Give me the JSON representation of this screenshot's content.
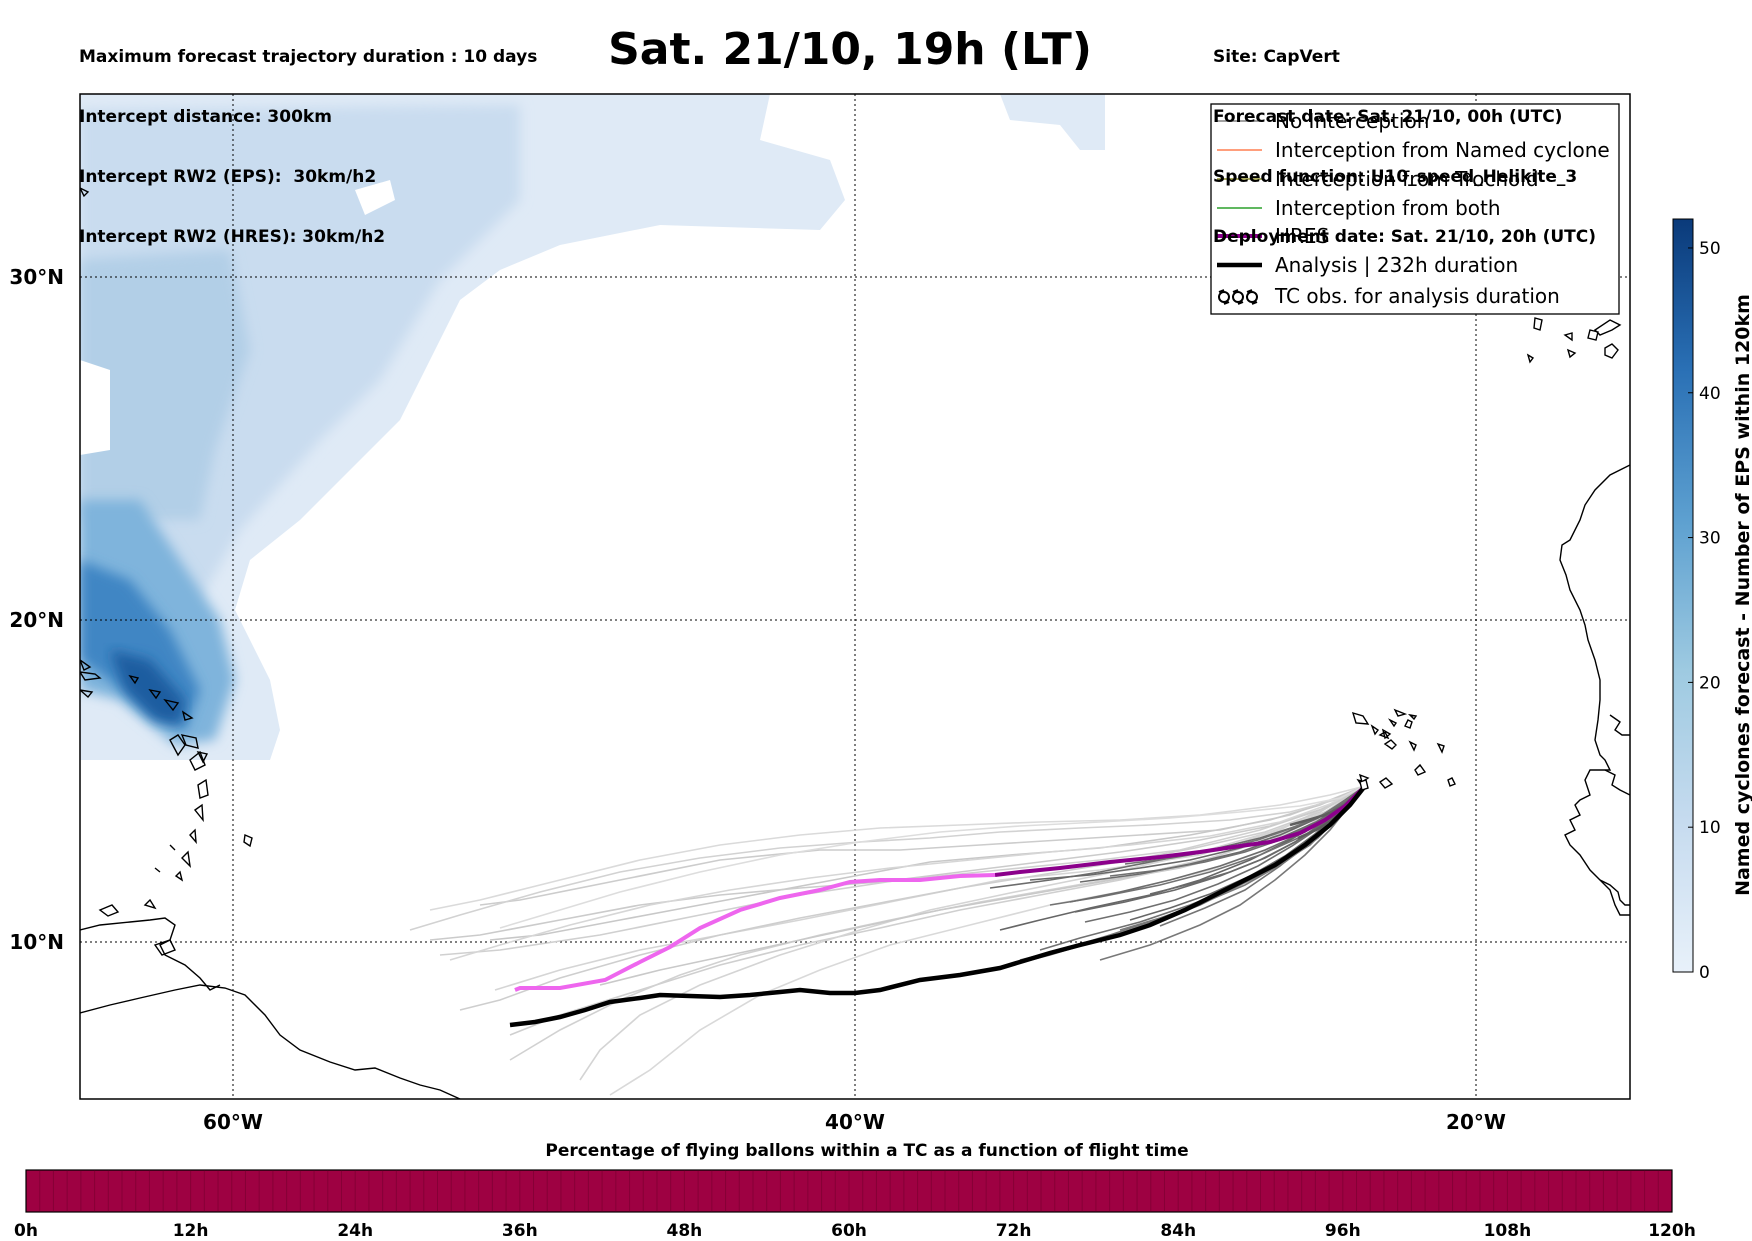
{
  "header": {
    "left_lines": [
      "Maximum forecast trajectory duration : 10 days",
      "Intercept distance: 300km",
      "Intercept RW2 (EPS):  30km/h2",
      "Intercept RW2 (HRES): 30km/h2"
    ],
    "title": "Sat. 21/10, 19h (LT)",
    "right_lines": [
      "Site: CapVert",
      "Forecast date: Sat. 21/10, 00h (UTC)",
      "Speed function: U10_speed_Helikite_3",
      "Deployment date: Sat. 21/10, 20h (UTC)"
    ]
  },
  "map": {
    "lon_range": [
      -65,
      -15
    ],
    "lat_range": [
      5,
      34.3
    ],
    "lat_ticks": [
      {
        "value": 30,
        "label": "30°N"
      },
      {
        "value": 20,
        "label": "20°N"
      },
      {
        "value": 10,
        "label": "10°N"
      }
    ],
    "lon_ticks": [
      {
        "value": -60,
        "label": "60°W"
      },
      {
        "value": -40,
        "label": "40°W"
      },
      {
        "value": -20,
        "label": "20°W"
      }
    ],
    "grid": true,
    "launch_site": {
      "lon": -23.5,
      "lat": 14.8
    }
  },
  "legend": {
    "placement": "top-right",
    "items": [
      {
        "label": "No Interception",
        "color": "#808080",
        "style": "thin"
      },
      {
        "label": "Interception from Named cyclone",
        "color": "#ff7f50",
        "style": "thin"
      },
      {
        "label": "Interception from Trochoid",
        "color": "#8b8b2a",
        "style": "thin"
      },
      {
        "label": "Interception from both",
        "color": "#2ca02c",
        "style": "thin"
      },
      {
        "label": "HRES",
        "color": "#8b008b",
        "style": "thick"
      },
      {
        "label": "Analysis | 232h duration",
        "color": "#000000",
        "style": "thick"
      },
      {
        "label": "TC obs. for analysis duration",
        "color": "#000000",
        "style": "symbol"
      }
    ]
  },
  "colorbar": {
    "label": "Named cyclones forecast - Number of EPS within 120km",
    "min": 0,
    "max": 52,
    "ticks": [
      0,
      10,
      20,
      30,
      40,
      50
    ],
    "colors": [
      "#e3eef9",
      "#c6dbef",
      "#9ecae1",
      "#6baed6",
      "#3182bd",
      "#08306b"
    ]
  },
  "bottom_bar": {
    "title": "Percentage of flying ballons within a TC as a function of flight time",
    "ticks": [
      "0h",
      "12h",
      "24h",
      "36h",
      "48h",
      "60h",
      "72h",
      "84h",
      "96h",
      "108h",
      "120h"
    ],
    "fill_color": "#9e0142",
    "percent": 0
  },
  "chart_data": {
    "type": "line",
    "xlabel": "",
    "ylabel": "",
    "xlim": [
      -65,
      -15
    ],
    "ylim": [
      5,
      34.3
    ],
    "series": [
      {
        "name": "HRES",
        "color": "#8b008b",
        "lon": [
          -23.5,
          -24.8,
          -26.0,
          -28.0,
          -31.0,
          -34.0,
          -36.0,
          -37.5,
          -39.0,
          -40.5,
          -42.0,
          -44.0,
          -46.5,
          -48.0,
          -51.0
        ],
        "lat": [
          14.8,
          13.8,
          13.0,
          12.6,
          12.1,
          11.9,
          11.6,
          11.5,
          11.5,
          11.4,
          11.2,
          10.7,
          9.8,
          8.6,
          8.5
        ]
      },
      {
        "name": "Analysis | 232h duration",
        "color": "#000000",
        "lon": [
          -23.5,
          -25.0,
          -26.5,
          -28.5,
          -31.0,
          -34.0,
          -36.5,
          -38.5,
          -40.0,
          -42.0,
          -44.0,
          -46.0,
          -48.0,
          -50.5,
          -51.0
        ],
        "lat": [
          14.8,
          13.5,
          12.5,
          11.4,
          10.3,
          9.5,
          8.8,
          8.4,
          8.2,
          8.1,
          8.0,
          7.9,
          7.7,
          7.3,
          7.2
        ]
      }
    ]
  }
}
